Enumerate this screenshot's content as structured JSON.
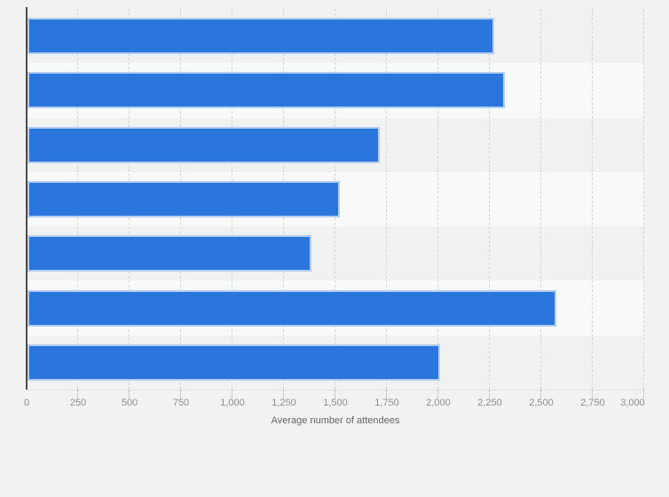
{
  "chart_data": {
    "type": "bar",
    "orientation": "horizontal",
    "title": "",
    "xlabel": "Average number of attendees",
    "ylabel": "",
    "categories": [
      "",
      "",
      "",
      "",
      "",
      "",
      ""
    ],
    "values": [
      2270,
      2325,
      1715,
      1520,
      1385,
      2575,
      2010
    ],
    "xlim": [
      0,
      3000
    ],
    "xtick_interval": 250,
    "xtick_labels": [
      "0",
      "250",
      "500",
      "750",
      "1,000",
      "1,250",
      "1,500",
      "1,750",
      "2,000",
      "2,250",
      "2,500",
      "2,750",
      "3,000"
    ],
    "grid": "vertical-dashed",
    "legend": "none",
    "colors": {
      "bar": "#2b76dc",
      "bar_border": "#b3cdf2",
      "band_odd": "#f0f1f1",
      "band_even": "#f8f9f9",
      "page_background": "#f2f2f2",
      "axis_line": "#4d4d4d",
      "gridline": "#d4d4d4",
      "tick_label": "#8f8f8f",
      "axis_title": "#666666"
    }
  }
}
